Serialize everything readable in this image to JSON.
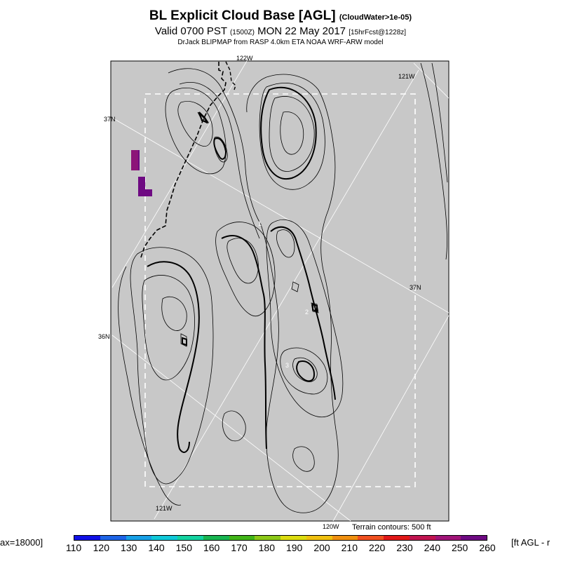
{
  "title": {
    "main": "BL Explicit Cloud Base [AGL]",
    "main_note": "(CloudWater>1e-05)",
    "valid": "Valid 0700 PST",
    "valid_utc": "(1500Z)",
    "date": "MON 22 May 2017",
    "forecast": "[15hrFcst@1228z]",
    "credit": "DrJack BLIPMAP from RASP 4.0km ETA NOAA WRF-ARW model"
  },
  "map_labels": {
    "lon_122": "122W",
    "lon_121_top": "121W",
    "lon_121_bottom": "121W",
    "lon_120": "120W",
    "lat_37_left": "37N",
    "lat_37_right": "37N",
    "lat_36": "36N"
  },
  "contour_labels": [
    "1",
    "2",
    "3"
  ],
  "terrain_note": "Terrain contours: 500 ft",
  "colorbar": {
    "max_label": "ax=18000]",
    "units_label": "[ft AGL - r",
    "ticks": [
      "110",
      "120",
      "130",
      "140",
      "150",
      "160",
      "170",
      "180",
      "190",
      "200",
      "210",
      "220",
      "230",
      "240",
      "250",
      "260"
    ],
    "colors": [
      "#1010e6",
      "#1e64e6",
      "#18a0e6",
      "#10c8d8",
      "#14d2a0",
      "#18b450",
      "#40b418",
      "#8cc818",
      "#dcdc10",
      "#f0c010",
      "#f09010",
      "#f05020",
      "#e01818",
      "#c01450",
      "#a01478",
      "#6e0a82"
    ]
  },
  "cells": [
    {
      "value_color": "#8c1478",
      "w": 1
    },
    {
      "value_color": "#6e0a82",
      "w": 1
    }
  ]
}
